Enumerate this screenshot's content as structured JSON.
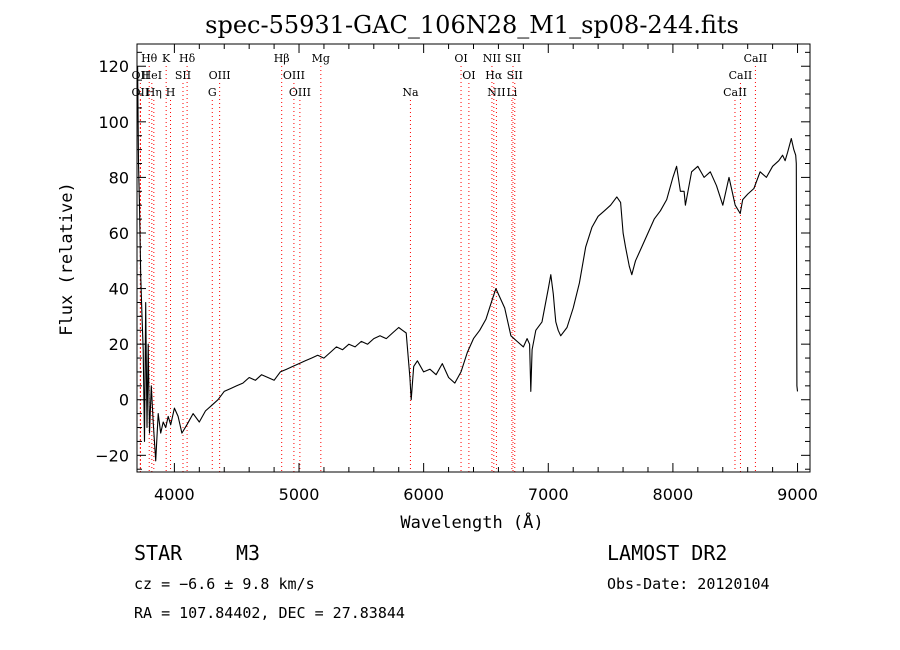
{
  "chart_data": {
    "type": "line",
    "title": "spec-55931-GAC_106N28_M1_sp08-244.fits",
    "xlabel": "Wavelength (Å)",
    "ylabel": "Flux (relative)",
    "xlim": [
      3700,
      9100
    ],
    "ylim": [
      -26,
      128
    ],
    "x_ticks": [
      4000,
      5000,
      6000,
      7000,
      8000,
      9000
    ],
    "y_ticks": [
      -20,
      0,
      20,
      40,
      60,
      80,
      100,
      120
    ],
    "grid": false,
    "series": [
      {
        "x": [
          3705,
          3712,
          3720,
          3730,
          3740,
          3750,
          3760,
          3770,
          3780,
          3790,
          3800,
          3815,
          3830,
          3850,
          3870,
          3890,
          3910,
          3930,
          3950,
          3970,
          4000,
          4030,
          4060,
          4100,
          4150,
          4200,
          4250,
          4300,
          4350,
          4400,
          4450,
          4500,
          4550,
          4600,
          4650,
          4700,
          4750,
          4800,
          4850,
          4900,
          4950,
          5000,
          5050,
          5100,
          5150,
          5200,
          5250,
          5300,
          5350,
          5400,
          5450,
          5500,
          5550,
          5600,
          5650,
          5700,
          5750,
          5800,
          5830,
          5860,
          5890,
          5900,
          5920,
          5950,
          6000,
          6050,
          6100,
          6150,
          6200,
          6250,
          6300,
          6350,
          6400,
          6450,
          6500,
          6550,
          6580,
          6600,
          6650,
          6700,
          6750,
          6800,
          6830,
          6850,
          6860,
          6870,
          6900,
          6950,
          7000,
          7020,
          7040,
          7050,
          7060,
          7080,
          7100,
          7150,
          7200,
          7250,
          7300,
          7350,
          7400,
          7450,
          7500,
          7550,
          7580,
          7600,
          7620,
          7650,
          7670,
          7700,
          7750,
          7800,
          7850,
          7900,
          7950,
          8000,
          8030,
          8060,
          8090,
          8100,
          8150,
          8200,
          8250,
          8300,
          8350,
          8400,
          8450,
          8500,
          8540,
          8560,
          8600,
          8650,
          8700,
          8750,
          8800,
          8850,
          8880,
          8900,
          8920,
          8950,
          8970,
          8985,
          8990,
          8995,
          9000
        ],
        "y": [
          120,
          85,
          70,
          45,
          30,
          18,
          -15,
          35,
          -10,
          20,
          -12,
          5,
          -8,
          -22,
          -5,
          -12,
          -8,
          -10,
          -6,
          -9,
          -3,
          -6,
          -12,
          -9,
          -5,
          -8,
          -4,
          -2,
          0,
          3,
          4,
          5,
          6,
          8,
          7,
          9,
          8,
          7,
          10,
          11,
          12,
          13,
          14,
          15,
          16,
          15,
          17,
          19,
          18,
          20,
          19,
          21,
          20,
          22,
          23,
          22,
          24,
          26,
          25,
          24,
          8,
          0,
          12,
          14,
          10,
          11,
          9,
          13,
          8,
          6,
          10,
          17,
          22,
          25,
          29,
          36,
          40,
          38,
          33,
          23,
          21,
          19,
          22,
          20,
          3,
          18,
          25,
          28,
          40,
          45,
          38,
          33,
          28,
          25,
          23,
          26,
          33,
          42,
          55,
          62,
          66,
          68,
          70,
          73,
          71,
          60,
          55,
          48,
          45,
          50,
          55,
          60,
          65,
          68,
          72,
          80,
          84,
          75,
          75,
          70,
          82,
          84,
          80,
          82,
          77,
          70,
          80,
          70,
          67,
          72,
          74,
          76,
          82,
          80,
          84,
          86,
          88,
          86,
          89,
          94,
          90,
          88,
          85,
          5,
          3
        ]
      }
    ],
    "spectral_lines": [
      {
        "label": "OII",
        "x": 3727,
        "row": 2
      },
      {
        "label": "Hθ",
        "x": 3798,
        "row": 1
      },
      {
        "label": "OII",
        "x": 3727,
        "row": 3
      },
      {
        "label": "HeI",
        "x": 3819,
        "row": 2
      },
      {
        "label": "Hη",
        "x": 3835,
        "row": 3
      },
      {
        "label": "K",
        "x": 3934,
        "row": 1
      },
      {
        "label": "SII",
        "x": 4069,
        "row": 2
      },
      {
        "label": "H",
        "x": 3969,
        "row": 3
      },
      {
        "label": "Hδ",
        "x": 4102,
        "row": 1
      },
      {
        "label": "OIII",
        "x": 4363,
        "row": 2
      },
      {
        "label": "G",
        "x": 4304,
        "row": 3
      },
      {
        "label": "Hβ",
        "x": 4861,
        "row": 1
      },
      {
        "label": "OIII",
        "x": 4959,
        "row": 2
      },
      {
        "label": "OIII",
        "x": 5007,
        "row": 3
      },
      {
        "label": "Mg",
        "x": 5175,
        "row": 1
      },
      {
        "label": "Na",
        "x": 5894,
        "row": 3
      },
      {
        "label": "OI",
        "x": 6300,
        "row": 1
      },
      {
        "label": "OI",
        "x": 6363,
        "row": 2
      },
      {
        "label": "NII",
        "x": 6548,
        "row": 1
      },
      {
        "label": "SII",
        "x": 6717,
        "row": 1
      },
      {
        "label": "Hα",
        "x": 6563,
        "row": 2
      },
      {
        "label": "SII",
        "x": 6731,
        "row": 2
      },
      {
        "label": "NII",
        "x": 6584,
        "row": 3
      },
      {
        "label": "Li",
        "x": 6708,
        "row": 3
      },
      {
        "label": "CaII",
        "x": 8662,
        "row": 1
      },
      {
        "label": "CaII",
        "x": 8542,
        "row": 2
      },
      {
        "label": "CaII",
        "x": 8498,
        "row": 3
      }
    ]
  },
  "info": {
    "class_label": "STAR",
    "subclass_label": "M3",
    "survey": "LAMOST DR2",
    "cz": "cz = −6.6 ± 9.8 km/s",
    "obs_date": "Obs-Date: 20120104",
    "coords": "RA = 107.84402, DEC =  27.83844"
  },
  "colors": {
    "line": "#000000",
    "marker": "#ff0000",
    "axes": "#000000"
  }
}
